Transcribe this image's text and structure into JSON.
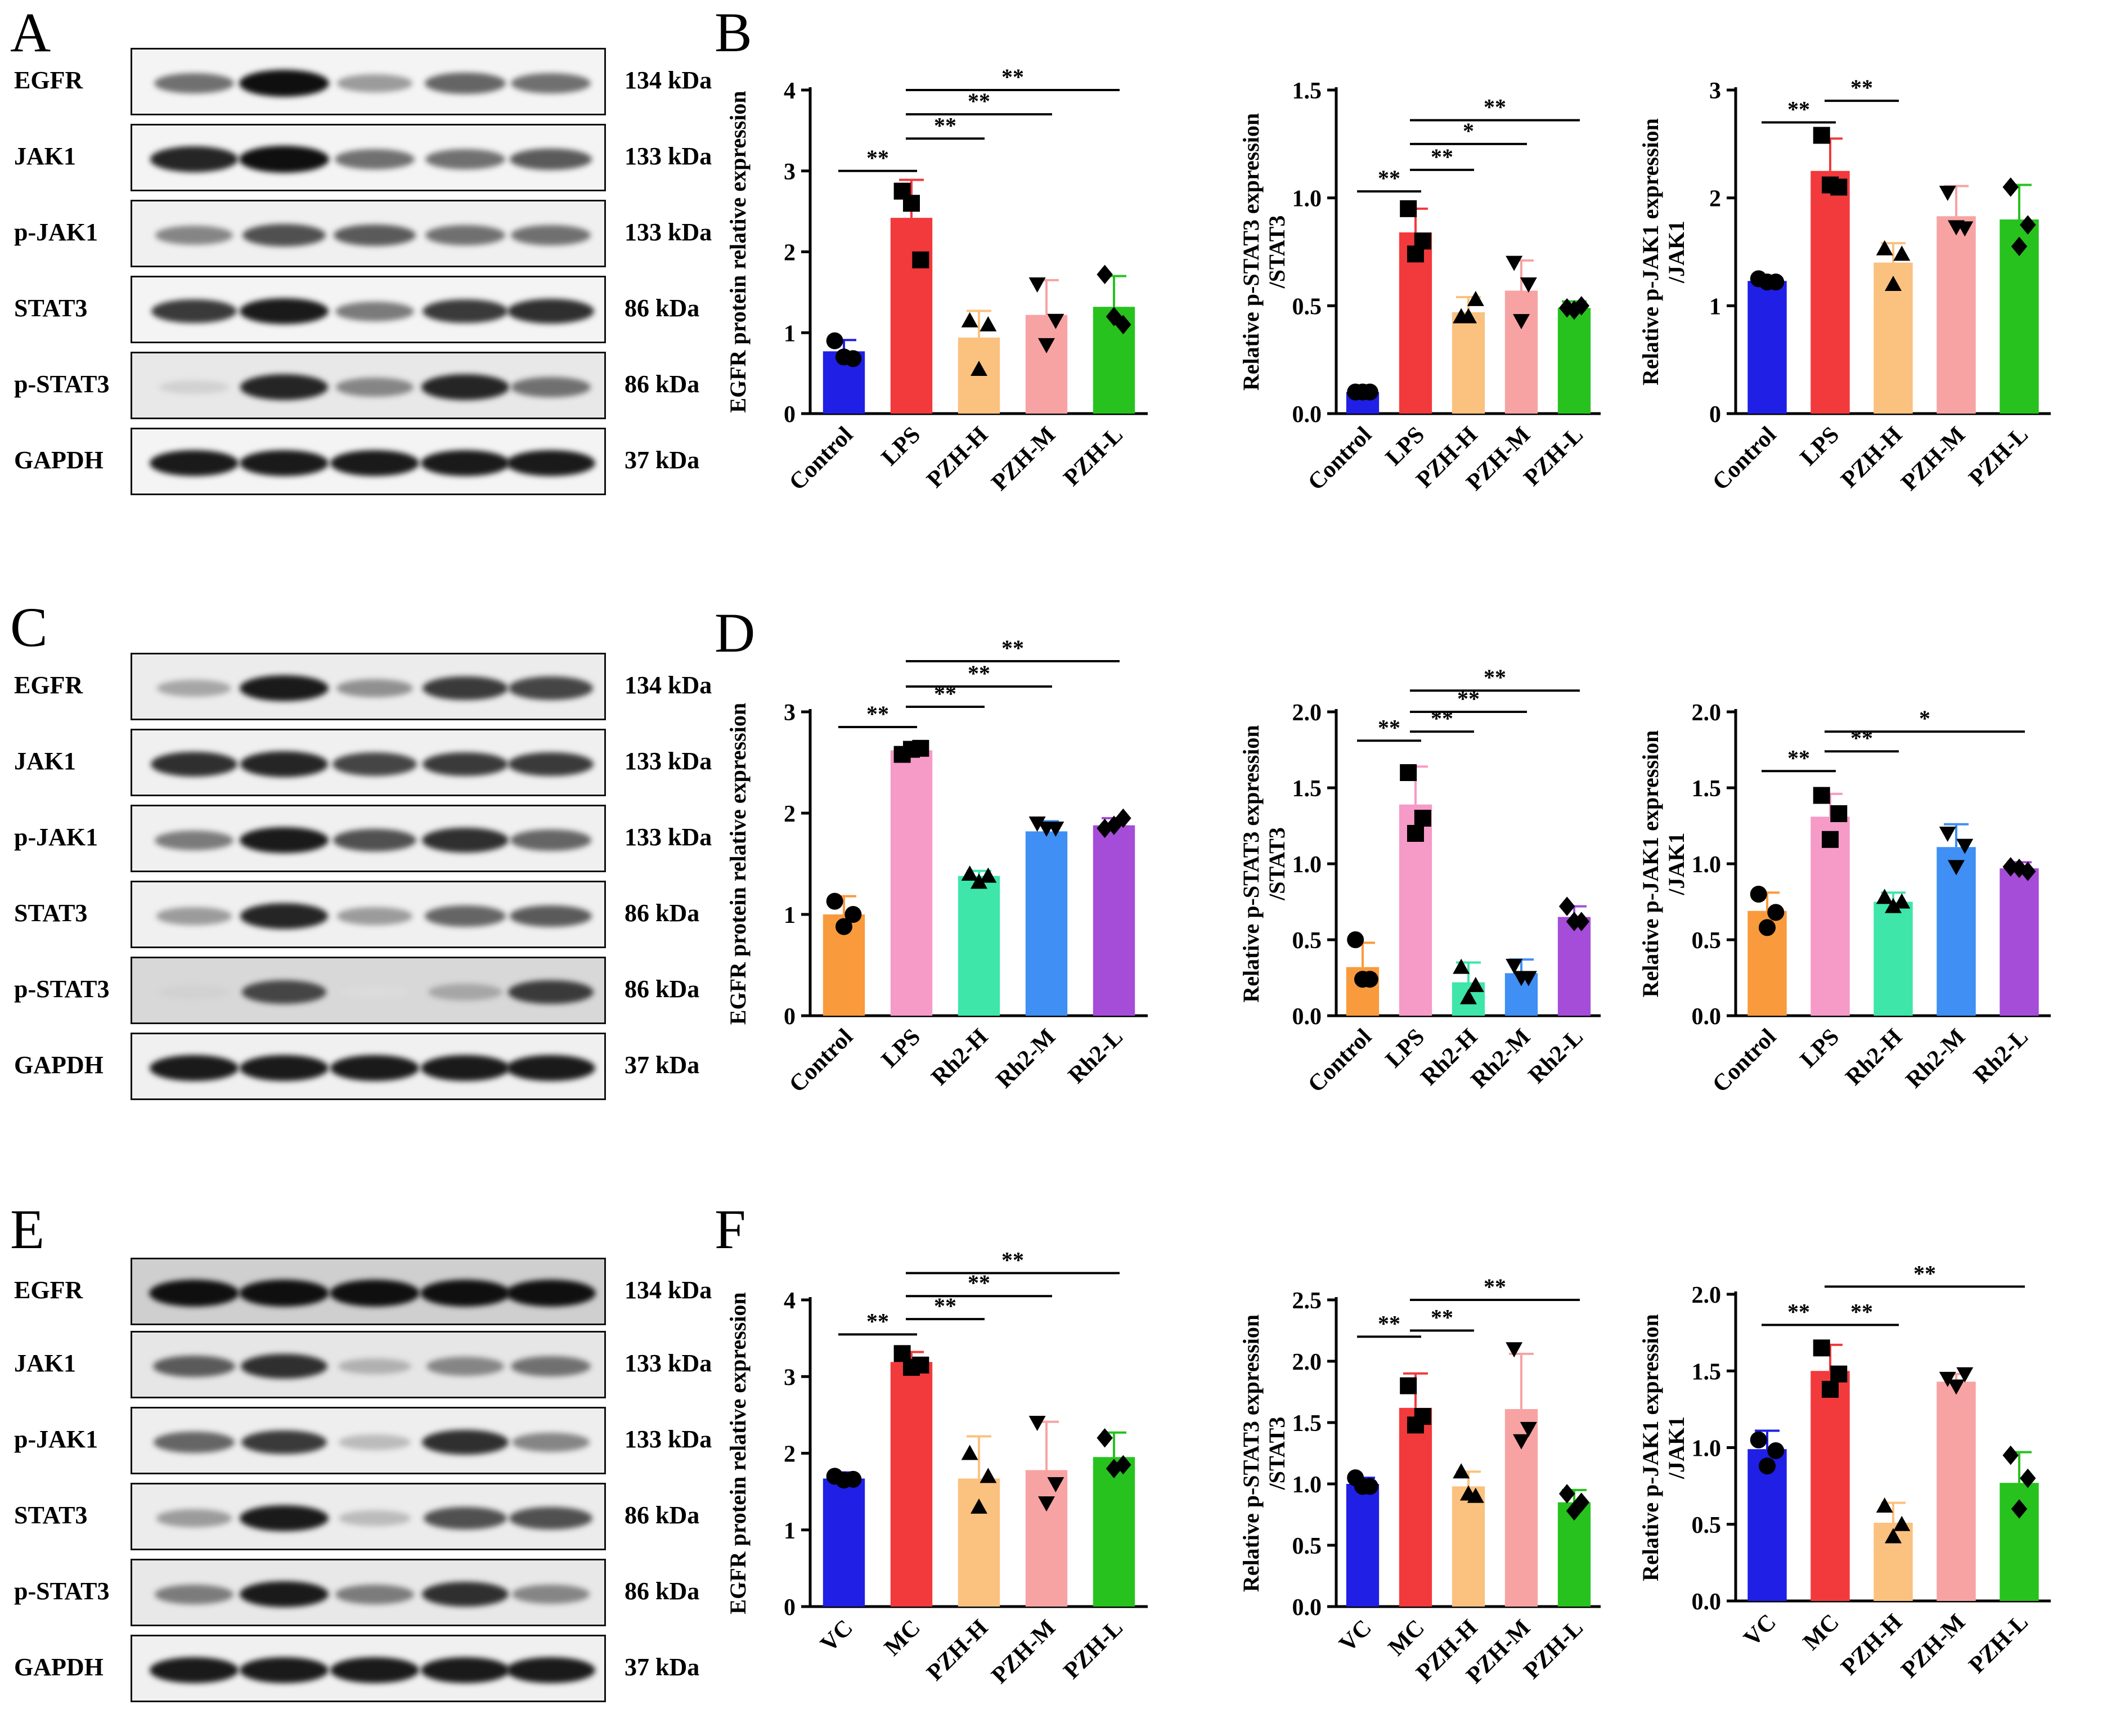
{
  "panels": [
    {
      "letter": "A"
    },
    {
      "letter": "B"
    },
    {
      "letter": "C"
    },
    {
      "letter": "D"
    },
    {
      "letter": "E"
    },
    {
      "letter": "F"
    }
  ],
  "blots": [
    {
      "id": "A",
      "lanes": [
        "Control",
        "LPS",
        "PZH-H",
        "PZH-M",
        "PZH-L"
      ],
      "rows": [
        {
          "label": "EGFR",
          "kda": "134 kDa",
          "intensity": [
            0.55,
            1.0,
            0.35,
            0.6,
            0.55
          ],
          "bg": "#f4f4f4"
        },
        {
          "label": "JAK1",
          "kda": "133 kDa",
          "intensity": [
            0.9,
            1.0,
            0.55,
            0.55,
            0.65
          ],
          "bg": "#f4f4f4"
        },
        {
          "label": "p-JAK1",
          "kda": "133 kDa",
          "intensity": [
            0.45,
            0.7,
            0.65,
            0.55,
            0.55
          ],
          "bg": "#f0f0f0"
        },
        {
          "label": "STAT3",
          "kda": "86 kDa",
          "intensity": [
            0.8,
            0.95,
            0.5,
            0.8,
            0.85
          ],
          "bg": "#f4f4f4"
        },
        {
          "label": "p-STAT3",
          "kda": "86 kDa",
          "intensity": [
            0.1,
            0.9,
            0.45,
            0.9,
            0.55
          ],
          "bg": "#e8e8e8"
        },
        {
          "label": "GAPDH",
          "kda": "37 kDa",
          "intensity": [
            0.95,
            0.95,
            0.95,
            0.95,
            0.95
          ],
          "bg": "#f4f4f4"
        }
      ]
    },
    {
      "id": "C",
      "lanes": [
        "Control",
        "LPS",
        "Rh2-H",
        "Rh2-M",
        "Rh2-L"
      ],
      "rows": [
        {
          "label": "EGFR",
          "kda": "134 kDa",
          "intensity": [
            0.3,
            0.95,
            0.4,
            0.8,
            0.75
          ],
          "bg": "#ececec"
        },
        {
          "label": "JAK1",
          "kda": "133 kDa",
          "intensity": [
            0.85,
            0.9,
            0.75,
            0.8,
            0.8
          ],
          "bg": "#f0f0f0"
        },
        {
          "label": "p-JAK1",
          "kda": "133 kDa",
          "intensity": [
            0.5,
            0.95,
            0.7,
            0.85,
            0.6
          ],
          "bg": "#f0f0f0"
        },
        {
          "label": "STAT3",
          "kda": "86 kDa",
          "intensity": [
            0.35,
            0.9,
            0.35,
            0.6,
            0.65
          ],
          "bg": "#f0f0f0"
        },
        {
          "label": "p-STAT3",
          "kda": "86 kDa",
          "intensity": [
            0.1,
            0.75,
            0.05,
            0.3,
            0.8
          ],
          "bg": "#d8d8d8"
        },
        {
          "label": "GAPDH",
          "kda": "37 kDa",
          "intensity": [
            0.95,
            0.95,
            0.95,
            0.95,
            0.95
          ],
          "bg": "#f0f0f0"
        }
      ]
    },
    {
      "id": "E",
      "lanes": [],
      "rows": [
        {
          "label": "EGFR",
          "kda": "134 kDa",
          "intensity": [
            1.0,
            1.0,
            1.0,
            1.0,
            1.0
          ],
          "bg": "#cfcfcf"
        },
        {
          "label": "JAK1",
          "kda": "133 kDa",
          "intensity": [
            0.65,
            0.85,
            0.25,
            0.45,
            0.55
          ],
          "bg": "#e6e6e6"
        },
        {
          "label": "p-JAK1",
          "kda": "133 kDa",
          "intensity": [
            0.6,
            0.8,
            0.2,
            0.85,
            0.45
          ],
          "bg": "#eeeeee"
        },
        {
          "label": "STAT3",
          "kda": "86 kDa",
          "intensity": [
            0.35,
            0.95,
            0.2,
            0.7,
            0.7
          ],
          "bg": "#ececec"
        },
        {
          "label": "p-STAT3",
          "kda": "86 kDa",
          "intensity": [
            0.5,
            0.95,
            0.5,
            0.85,
            0.45
          ],
          "bg": "#e8e8e8"
        },
        {
          "label": "GAPDH",
          "kda": "37 kDa",
          "intensity": [
            0.95,
            0.95,
            0.95,
            0.95,
            0.95
          ],
          "bg": "#f0f0f0"
        }
      ]
    }
  ],
  "chart_data": [
    {
      "id": "B1",
      "type": "bar",
      "ylabel": [
        "EGFR protein relative expression"
      ],
      "ylim": [
        0,
        4
      ],
      "yticks": [
        "0",
        "1",
        "2",
        "3",
        "4"
      ],
      "categories": [
        "Control",
        "LPS",
        "PZH-H",
        "PZH-M",
        "PZH-L"
      ],
      "values": [
        0.77,
        2.42,
        0.94,
        1.22,
        1.32
      ],
      "errors": [
        0.14,
        0.47,
        0.33,
        0.43,
        0.38
      ],
      "colors": [
        "#1f1fe6",
        "#f2393c",
        "#fbc17f",
        "#f7a3a3",
        "#27c21e"
      ],
      "markers": [
        "circle",
        "square",
        "triangle",
        "triangle-down",
        "diamond"
      ],
      "points": [
        [
          0.9,
          0.68,
          0.7
        ],
        [
          2.75,
          1.9,
          2.6
        ],
        [
          1.15,
          1.1,
          0.55
        ],
        [
          1.6,
          1.15,
          0.85
        ],
        [
          1.72,
          1.1,
          1.2
        ]
      ],
      "sig": [
        {
          "from": 0,
          "to": 1,
          "y": 3.0,
          "label": "**"
        },
        {
          "from": 1,
          "to": 2,
          "y": 3.4,
          "label": "**"
        },
        {
          "from": 1,
          "to": 3,
          "y": 3.7,
          "label": "**"
        },
        {
          "from": 1,
          "to": 4,
          "y": 4.0,
          "label": "**"
        }
      ]
    },
    {
      "id": "B2",
      "type": "bar",
      "ylabel": [
        "Relative p-STAT3 expression",
        "/STAT3"
      ],
      "ylim": [
        0,
        1.5
      ],
      "yticks": [
        "0.0",
        "0.5",
        "1.0",
        "1.5"
      ],
      "categories": [
        "Control",
        "LPS",
        "PZH-H",
        "PZH-M",
        "PZH-L"
      ],
      "values": [
        0.1,
        0.84,
        0.47,
        0.57,
        0.49
      ],
      "errors": [
        0.01,
        0.11,
        0.07,
        0.14,
        0.03
      ],
      "colors": [
        "#1f1fe6",
        "#f2393c",
        "#fbc17f",
        "#f7a3a3",
        "#27c21e"
      ],
      "markers": [
        "circle",
        "square",
        "triangle",
        "triangle-down",
        "diamond"
      ],
      "points": [
        [
          0.1,
          0.1,
          0.1
        ],
        [
          0.95,
          0.8,
          0.74
        ],
        [
          0.45,
          0.53,
          0.45
        ],
        [
          0.7,
          0.6,
          0.43
        ],
        [
          0.49,
          0.5,
          0.48
        ]
      ],
      "sig": [
        {
          "from": 0,
          "to": 1,
          "y": 1.03,
          "label": "**"
        },
        {
          "from": 1,
          "to": 2,
          "y": 1.13,
          "label": "**"
        },
        {
          "from": 1,
          "to": 3,
          "y": 1.25,
          "label": "*"
        },
        {
          "from": 1,
          "to": 4,
          "y": 1.36,
          "label": "**"
        }
      ]
    },
    {
      "id": "B3",
      "type": "bar",
      "ylabel": [
        "Relative p-JAK1 expression",
        "/JAK1"
      ],
      "ylim": [
        0,
        3
      ],
      "yticks": [
        "0",
        "1",
        "2",
        "3"
      ],
      "categories": [
        "Control",
        "LPS",
        "PZH-H",
        "PZH-M",
        "PZH-L"
      ],
      "values": [
        1.23,
        2.25,
        1.4,
        1.83,
        1.8
      ],
      "errors": [
        0.03,
        0.3,
        0.18,
        0.28,
        0.32
      ],
      "colors": [
        "#1f1fe6",
        "#f2393c",
        "#fbc17f",
        "#f7a3a3",
        "#27c21e"
      ],
      "markers": [
        "circle",
        "square",
        "triangle",
        "triangle-down",
        "diamond"
      ],
      "points": [
        [
          1.25,
          1.22,
          1.22
        ],
        [
          2.58,
          2.1,
          2.12
        ],
        [
          1.53,
          1.48,
          1.2
        ],
        [
          2.05,
          1.72,
          1.73
        ],
        [
          2.1,
          1.75,
          1.55
        ]
      ],
      "sig": [
        {
          "from": 0,
          "to": 1,
          "y": 2.7,
          "label": "**"
        },
        {
          "from": 1,
          "to": 2,
          "y": 2.9,
          "label": "**"
        }
      ]
    },
    {
      "id": "D1",
      "type": "bar",
      "ylabel": [
        "EGFR protein relative expression"
      ],
      "ylim": [
        0,
        3
      ],
      "yticks": [
        "0",
        "1",
        "2",
        "3"
      ],
      "categories": [
        "Control",
        "LPS",
        "Rh2-H",
        "Rh2-M",
        "Rh2-L"
      ],
      "values": [
        1.0,
        2.62,
        1.38,
        1.82,
        1.88
      ],
      "errors": [
        0.18,
        0.03,
        0.05,
        0.1,
        0.07
      ],
      "colors": [
        "#f99a3c",
        "#f69ac7",
        "#3fe6a9",
        "#3f8ff4",
        "#a54cd8"
      ],
      "markers": [
        "circle",
        "square",
        "triangle",
        "triangle-down",
        "diamond"
      ],
      "points": [
        [
          1.13,
          1.0,
          0.88
        ],
        [
          2.58,
          2.64,
          2.63
        ],
        [
          1.4,
          1.38,
          1.32
        ],
        [
          1.9,
          1.85,
          1.85
        ],
        [
          1.85,
          1.95,
          1.88
        ]
      ],
      "sig": [
        {
          "from": 0,
          "to": 1,
          "y": 2.85,
          "label": "**"
        },
        {
          "from": 1,
          "to": 2,
          "y": 3.05,
          "label": "**"
        },
        {
          "from": 1,
          "to": 3,
          "y": 3.25,
          "label": "**"
        },
        {
          "from": 1,
          "to": 4,
          "y": 3.5,
          "label": "**"
        }
      ]
    },
    {
      "id": "D2",
      "type": "bar",
      "ylabel": [
        "Relative p-STAT3 expression",
        "/STAT3"
      ],
      "ylim": [
        0,
        2
      ],
      "yticks": [
        "0.0",
        "0.5",
        "1.0",
        "1.5",
        "2.0"
      ],
      "categories": [
        "Control",
        "LPS",
        "Rh2-H",
        "Rh2-M",
        "Rh2-L"
      ],
      "values": [
        0.32,
        1.39,
        0.22,
        0.28,
        0.65
      ],
      "errors": [
        0.16,
        0.25,
        0.13,
        0.09,
        0.07
      ],
      "colors": [
        "#f99a3c",
        "#f69ac7",
        "#3fe6a9",
        "#3f8ff4",
        "#a54cd8"
      ],
      "markers": [
        "circle",
        "square",
        "triangle",
        "triangle-down",
        "diamond"
      ],
      "points": [
        [
          0.5,
          0.24,
          0.24
        ],
        [
          1.6,
          1.3,
          1.2
        ],
        [
          0.32,
          0.2,
          0.12
        ],
        [
          0.33,
          0.25,
          0.25
        ],
        [
          0.72,
          0.62,
          0.62
        ]
      ],
      "sig": [
        {
          "from": 0,
          "to": 1,
          "y": 1.81,
          "label": "**"
        },
        {
          "from": 1,
          "to": 2,
          "y": 1.87,
          "label": "**"
        },
        {
          "from": 1,
          "to": 3,
          "y": 2.0,
          "label": "**"
        },
        {
          "from": 1,
          "to": 4,
          "y": 2.14,
          "label": "**"
        }
      ]
    },
    {
      "id": "D3",
      "type": "bar",
      "ylabel": [
        "Relative p-JAK1 expression",
        "/JAK1"
      ],
      "ylim": [
        0,
        2
      ],
      "yticks": [
        "0.0",
        "0.5",
        "1.0",
        "1.5",
        "2.0"
      ],
      "categories": [
        "Control",
        "LPS",
        "Rh2-H",
        "Rh2-M",
        "Rh2-L"
      ],
      "values": [
        0.69,
        1.31,
        0.75,
        1.11,
        0.97
      ],
      "errors": [
        0.12,
        0.15,
        0.06,
        0.15,
        0.04
      ],
      "colors": [
        "#f99a3c",
        "#f69ac7",
        "#3fe6a9",
        "#3f8ff4",
        "#a54cd8"
      ],
      "markers": [
        "circle",
        "square",
        "triangle",
        "triangle-down",
        "diamond"
      ],
      "points": [
        [
          0.8,
          0.68,
          0.58
        ],
        [
          1.45,
          1.33,
          1.16
        ],
        [
          0.78,
          0.75,
          0.72
        ],
        [
          1.2,
          1.12,
          0.98
        ],
        [
          0.98,
          0.95,
          0.97
        ]
      ],
      "sig": [
        {
          "from": 0,
          "to": 1,
          "y": 1.61,
          "label": "**"
        },
        {
          "from": 1,
          "to": 2,
          "y": 1.74,
          "label": "**"
        },
        {
          "from": 1,
          "to": 4,
          "y": 1.87,
          "label": "*"
        }
      ]
    },
    {
      "id": "F1",
      "type": "bar",
      "ylabel": [
        "EGFR protein relative expression"
      ],
      "ylim": [
        0,
        4
      ],
      "yticks": [
        "0",
        "1",
        "2",
        "3",
        "4"
      ],
      "categories": [
        "VC",
        "MC",
        "PZH-H",
        "PZH-M",
        "PZH-L"
      ],
      "values": [
        1.67,
        3.19,
        1.67,
        1.78,
        1.95
      ],
      "errors": [
        0.08,
        0.13,
        0.55,
        0.63,
        0.32
      ],
      "colors": [
        "#1f1fe6",
        "#f2393c",
        "#fbc17f",
        "#f7a3a3",
        "#27c21e"
      ],
      "markers": [
        "circle",
        "square",
        "triangle",
        "triangle-down",
        "diamond"
      ],
      "points": [
        [
          1.7,
          1.66,
          1.65
        ],
        [
          3.3,
          3.15,
          3.12
        ],
        [
          2.0,
          1.7,
          1.3
        ],
        [
          2.4,
          1.6,
          1.35
        ],
        [
          2.2,
          1.85,
          1.8
        ]
      ],
      "sig": [
        {
          "from": 0,
          "to": 1,
          "y": 3.55,
          "label": "**"
        },
        {
          "from": 1,
          "to": 2,
          "y": 3.75,
          "label": "**"
        },
        {
          "from": 1,
          "to": 3,
          "y": 4.05,
          "label": "**"
        },
        {
          "from": 1,
          "to": 4,
          "y": 4.35,
          "label": "**"
        }
      ]
    },
    {
      "id": "F2",
      "type": "bar",
      "ylabel": [
        "Relative p-STAT3 expression",
        "/STAT3"
      ],
      "ylim": [
        0,
        2.5
      ],
      "yticks": [
        "0.0",
        "0.5",
        "1.0",
        "1.5",
        "2.0",
        "2.5"
      ],
      "categories": [
        "VC",
        "MC",
        "PZH-H",
        "PZH-M",
        "PZH-L"
      ],
      "values": [
        1.0,
        1.62,
        0.98,
        1.61,
        0.85
      ],
      "errors": [
        0.05,
        0.28,
        0.12,
        0.45,
        0.1
      ],
      "colors": [
        "#1f1fe6",
        "#f2393c",
        "#fbc17f",
        "#f7a3a3",
        "#27c21e"
      ],
      "markers": [
        "circle",
        "square",
        "triangle",
        "triangle-down",
        "diamond"
      ],
      "points": [
        [
          1.05,
          0.98,
          0.98
        ],
        [
          1.8,
          1.55,
          1.48
        ],
        [
          1.1,
          0.9,
          0.92
        ],
        [
          2.1,
          1.45,
          1.35
        ],
        [
          0.92,
          0.85,
          0.78
        ]
      ],
      "sig": [
        {
          "from": 0,
          "to": 1,
          "y": 2.2,
          "label": "**"
        },
        {
          "from": 1,
          "to": 2,
          "y": 2.25,
          "label": "**"
        },
        {
          "from": 1,
          "to": 4,
          "y": 2.5,
          "label": "**"
        }
      ]
    },
    {
      "id": "F3",
      "type": "bar",
      "ylabel": [
        "Relative p-JAK1 expression",
        "/JAK1"
      ],
      "ylim": [
        0,
        2
      ],
      "yticks": [
        "0.0",
        "0.5",
        "1.0",
        "1.5",
        "2.0"
      ],
      "categories": [
        "VC",
        "MC",
        "PZH-H",
        "PZH-M",
        "PZH-L"
      ],
      "values": [
        0.99,
        1.5,
        0.51,
        1.43,
        0.77
      ],
      "errors": [
        0.12,
        0.17,
        0.13,
        0.05,
        0.2
      ],
      "colors": [
        "#1f1fe6",
        "#f2393c",
        "#fbc17f",
        "#f7a3a3",
        "#27c21e"
      ],
      "markers": [
        "circle",
        "square",
        "triangle",
        "triangle-down",
        "diamond"
      ],
      "points": [
        [
          1.05,
          0.98,
          0.88
        ],
        [
          1.65,
          1.48,
          1.38
        ],
        [
          0.62,
          0.5,
          0.42
        ],
        [
          1.45,
          1.48,
          1.4
        ],
        [
          0.95,
          0.8,
          0.6
        ]
      ],
      "sig": [
        {
          "from": 0,
          "to": 1,
          "y": 1.8,
          "label": "**"
        },
        {
          "from": 1,
          "to": 2,
          "y": 1.8,
          "label": "**"
        },
        {
          "from": 1,
          "to": 4,
          "y": 2.05,
          "label": "**"
        }
      ]
    }
  ]
}
